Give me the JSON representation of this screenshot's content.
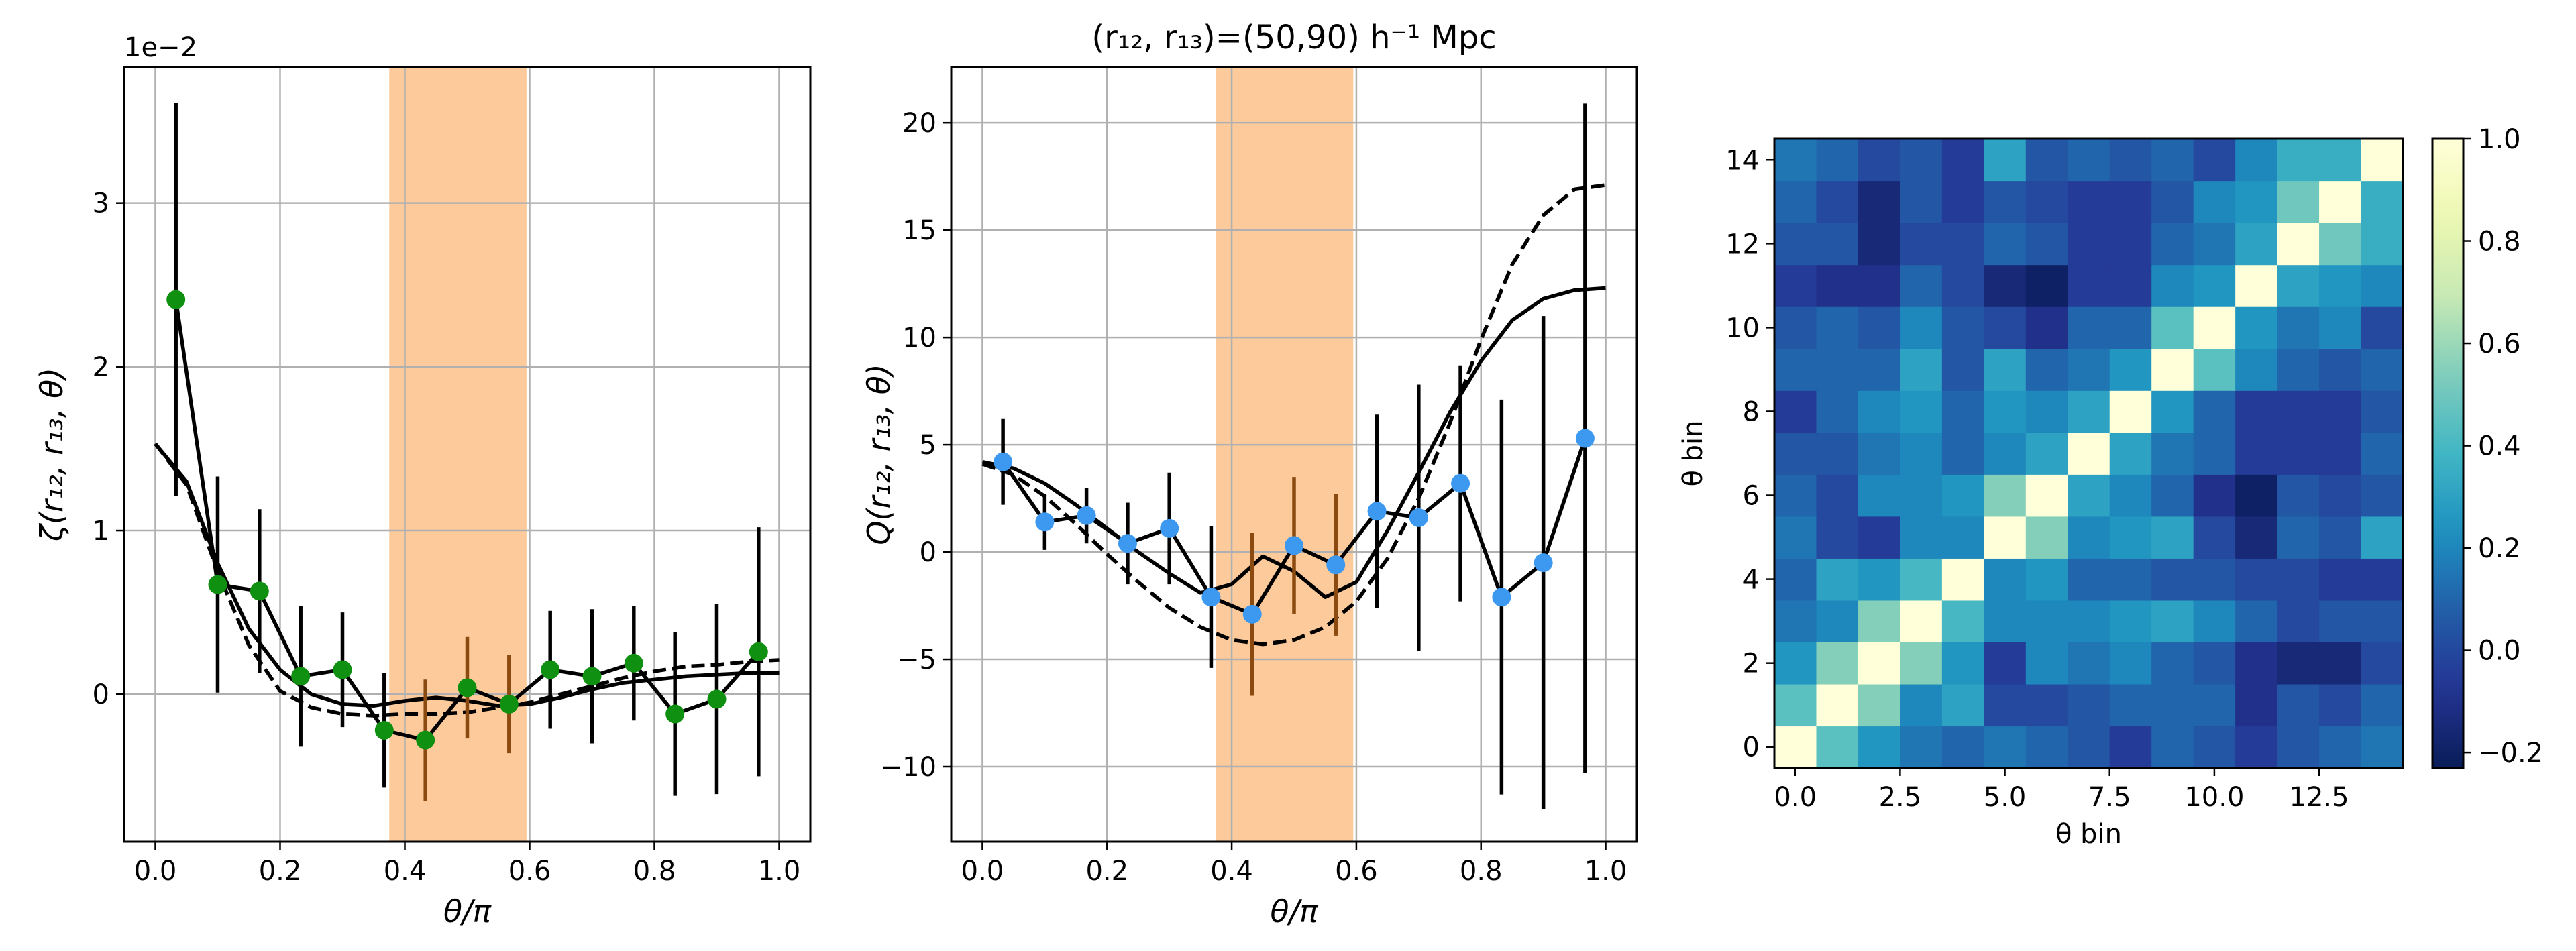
{
  "chart_data": [
    {
      "type": "line",
      "panel": "zeta",
      "ylabel": "ζ(r₁₂, r₁₃, θ)",
      "xlabel": "θ/π",
      "offset_label": "1e−2",
      "xlim": [
        -0.05,
        1.05
      ],
      "ylim": [
        -0.9,
        3.83
      ],
      "xticks": [
        0.0,
        0.2,
        0.4,
        0.6,
        0.8,
        1.0
      ],
      "xtick_labels": [
        "0.0",
        "0.2",
        "0.4",
        "0.6",
        "0.8",
        "1.0"
      ],
      "yticks": [
        0,
        1,
        2,
        3
      ],
      "ytick_labels": [
        "0",
        "1",
        "2",
        "3"
      ],
      "grid": true,
      "shaded_band": {
        "x0": 0.375,
        "x1": 0.595,
        "color": "#fdc896"
      },
      "points": {
        "marker_color": "#109010",
        "x": [
          0.033,
          0.1,
          0.167,
          0.233,
          0.3,
          0.367,
          0.433,
          0.5,
          0.567,
          0.633,
          0.7,
          0.767,
          0.833,
          0.9,
          0.967
        ],
        "y": [
          2.41,
          0.67,
          0.63,
          0.11,
          0.15,
          -0.22,
          -0.28,
          0.04,
          -0.06,
          0.15,
          0.11,
          0.19,
          -0.12,
          -0.03,
          0.26
        ],
        "err": [
          1.2,
          0.66,
          0.5,
          0.43,
          0.35,
          0.35,
          0.37,
          0.31,
          0.3,
          0.36,
          0.41,
          0.35,
          0.5,
          0.58,
          0.76
        ]
      },
      "model_solid": {
        "x": [
          0.0,
          0.05,
          0.1,
          0.15,
          0.2,
          0.25,
          0.3,
          0.35,
          0.4,
          0.45,
          0.5,
          0.55,
          0.6,
          0.65,
          0.7,
          0.75,
          0.8,
          0.85,
          0.9,
          0.95,
          1.0
        ],
        "y": [
          1.53,
          1.3,
          0.8,
          0.4,
          0.15,
          0.0,
          -0.06,
          -0.07,
          -0.04,
          -0.02,
          -0.04,
          -0.07,
          -0.06,
          -0.02,
          0.03,
          0.07,
          0.09,
          0.11,
          0.12,
          0.13,
          0.13
        ]
      },
      "model_dashed": {
        "x": [
          0.0,
          0.05,
          0.1,
          0.15,
          0.2,
          0.25,
          0.3,
          0.35,
          0.4,
          0.45,
          0.5,
          0.55,
          0.6,
          0.65,
          0.7,
          0.75,
          0.8,
          0.85,
          0.9,
          0.95,
          1.0
        ],
        "y": [
          1.53,
          1.28,
          0.75,
          0.3,
          0.02,
          -0.08,
          -0.12,
          -0.13,
          -0.12,
          -0.12,
          -0.11,
          -0.08,
          -0.05,
          0.0,
          0.05,
          0.1,
          0.14,
          0.17,
          0.18,
          0.2,
          0.21
        ]
      }
    },
    {
      "type": "line",
      "panel": "Q",
      "title": "(r₁₂, r₁₃)=(50,90) h⁻¹ Mpc",
      "ylabel": "Q(r₁₂, r₁₃, θ)",
      "xlabel": "θ/π",
      "xlim": [
        -0.05,
        1.05
      ],
      "ylim": [
        -13.5,
        22.6
      ],
      "xticks": [
        0.0,
        0.2,
        0.4,
        0.6,
        0.8,
        1.0
      ],
      "xtick_labels": [
        "0.0",
        "0.2",
        "0.4",
        "0.6",
        "0.8",
        "1.0"
      ],
      "yticks": [
        -10,
        -5,
        0,
        5,
        10,
        15,
        20
      ],
      "ytick_labels": [
        "−10",
        "−5",
        "0",
        "5",
        "10",
        "15",
        "20"
      ],
      "grid": true,
      "shaded_band": {
        "x0": 0.375,
        "x1": 0.595,
        "color": "#fdc896"
      },
      "points": {
        "marker_color": "#3d98f0",
        "x": [
          0.033,
          0.1,
          0.167,
          0.233,
          0.3,
          0.367,
          0.433,
          0.5,
          0.567,
          0.633,
          0.7,
          0.767,
          0.833,
          0.9,
          0.967
        ],
        "y": [
          4.2,
          1.4,
          1.7,
          0.4,
          1.1,
          -2.1,
          -2.9,
          0.3,
          -0.6,
          1.9,
          1.6,
          3.2,
          -2.1,
          -0.5,
          5.3
        ],
        "err": [
          2.0,
          1.3,
          1.3,
          1.9,
          2.6,
          3.3,
          3.8,
          3.2,
          3.3,
          4.5,
          6.2,
          5.5,
          9.2,
          11.5,
          15.6
        ]
      },
      "model_solid": {
        "x": [
          0.0,
          0.05,
          0.1,
          0.15,
          0.2,
          0.25,
          0.3,
          0.35,
          0.4,
          0.45,
          0.5,
          0.55,
          0.6,
          0.65,
          0.7,
          0.75,
          0.8,
          0.85,
          0.9,
          0.95,
          1.0
        ],
        "y": [
          4.2,
          3.9,
          3.2,
          2.2,
          1.1,
          0.0,
          -1.0,
          -1.9,
          -1.5,
          -0.2,
          -0.9,
          -2.1,
          -1.4,
          1.0,
          3.7,
          6.5,
          8.9,
          10.8,
          11.8,
          12.2,
          12.3
        ]
      },
      "model_dashed": {
        "x": [
          0.0,
          0.05,
          0.1,
          0.15,
          0.2,
          0.25,
          0.3,
          0.35,
          0.4,
          0.45,
          0.5,
          0.55,
          0.6,
          0.65,
          0.7,
          0.75,
          0.8,
          0.85,
          0.9,
          0.95,
          1.0
        ],
        "y": [
          4.1,
          3.6,
          2.6,
          1.3,
          -0.1,
          -1.4,
          -2.6,
          -3.5,
          -4.1,
          -4.3,
          -4.1,
          -3.5,
          -2.3,
          -0.3,
          2.5,
          6.0,
          9.9,
          13.4,
          15.7,
          16.9,
          17.1
        ]
      }
    },
    {
      "type": "heatmap",
      "panel": "correlation",
      "xlabel": "θ bin",
      "ylabel": "θ bin",
      "xticks": [
        0.0,
        2.5,
        5.0,
        7.5,
        10.0,
        12.5
      ],
      "xtick_labels": [
        "0.0",
        "2.5",
        "5.0",
        "7.5",
        "10.0",
        "12.5"
      ],
      "yticks": [
        0,
        2,
        4,
        6,
        8,
        10,
        12,
        14
      ],
      "ytick_labels": [
        "0",
        "2",
        "4",
        "6",
        "8",
        "10",
        "12",
        "14"
      ],
      "colormap": "YlGnBu",
      "vmin": -0.23,
      "vmax": 1.0,
      "colorbar_ticks": [
        -0.2,
        0.0,
        0.2,
        0.4,
        0.6,
        0.8,
        1.0
      ],
      "colorbar_tick_labels": [
        "−0.2",
        "0.0",
        "0.2",
        "0.4",
        "0.6",
        "0.8",
        "1.0"
      ],
      "matrix": [
        [
          1.0,
          0.45,
          0.25,
          0.15,
          0.1,
          0.15,
          0.1,
          0.05,
          -0.05,
          0.1,
          0.05,
          -0.05,
          0.05,
          0.1,
          0.15
        ],
        [
          0.45,
          1.0,
          0.55,
          0.2,
          0.3,
          0.0,
          0.0,
          0.05,
          0.1,
          0.1,
          0.1,
          -0.1,
          0.05,
          0.0,
          0.1
        ],
        [
          0.25,
          0.55,
          1.0,
          0.55,
          0.25,
          -0.05,
          0.2,
          0.15,
          0.2,
          0.1,
          0.05,
          -0.1,
          -0.15,
          -0.15,
          0.0
        ],
        [
          0.15,
          0.2,
          0.55,
          1.0,
          0.4,
          0.2,
          0.2,
          0.2,
          0.25,
          0.3,
          0.2,
          0.1,
          0.0,
          0.05,
          0.05
        ],
        [
          0.1,
          0.3,
          0.25,
          0.4,
          1.0,
          0.2,
          0.25,
          0.1,
          0.1,
          0.05,
          0.05,
          0.0,
          0.0,
          -0.05,
          -0.05
        ],
        [
          0.15,
          0.0,
          -0.05,
          0.2,
          0.2,
          1.0,
          0.55,
          0.2,
          0.25,
          0.3,
          0.0,
          -0.15,
          0.1,
          0.05,
          0.3
        ],
        [
          0.1,
          0.0,
          0.2,
          0.2,
          0.25,
          0.55,
          1.0,
          0.3,
          0.2,
          0.1,
          -0.1,
          -0.2,
          0.05,
          0.0,
          0.05
        ],
        [
          0.05,
          0.05,
          0.15,
          0.2,
          0.1,
          0.2,
          0.3,
          1.0,
          0.3,
          0.15,
          0.1,
          -0.05,
          -0.05,
          -0.05,
          0.1
        ],
        [
          -0.05,
          0.1,
          0.2,
          0.25,
          0.1,
          0.25,
          0.2,
          0.3,
          1.0,
          0.25,
          0.1,
          -0.05,
          -0.05,
          -0.05,
          0.05
        ],
        [
          0.1,
          0.1,
          0.1,
          0.3,
          0.05,
          0.3,
          0.1,
          0.15,
          0.25,
          1.0,
          0.45,
          0.2,
          0.1,
          0.05,
          0.1
        ],
        [
          0.05,
          0.1,
          0.05,
          0.2,
          0.05,
          0.0,
          -0.1,
          0.1,
          0.1,
          0.45,
          1.0,
          0.25,
          0.15,
          0.2,
          0.0
        ],
        [
          -0.05,
          -0.1,
          -0.1,
          0.1,
          0.0,
          -0.15,
          -0.2,
          -0.05,
          -0.05,
          0.2,
          0.25,
          1.0,
          0.3,
          0.25,
          0.2
        ],
        [
          0.05,
          0.05,
          -0.15,
          0.0,
          0.0,
          0.1,
          0.05,
          -0.05,
          -0.05,
          0.1,
          0.15,
          0.3,
          1.0,
          0.5,
          0.35
        ],
        [
          0.1,
          0.0,
          -0.15,
          0.05,
          -0.05,
          0.05,
          0.0,
          -0.05,
          -0.05,
          0.05,
          0.2,
          0.25,
          0.5,
          1.0,
          0.35
        ],
        [
          0.15,
          0.1,
          0.0,
          0.05,
          -0.05,
          0.3,
          0.05,
          0.1,
          0.05,
          0.1,
          0.0,
          0.2,
          0.35,
          0.35,
          1.0
        ]
      ]
    }
  ]
}
